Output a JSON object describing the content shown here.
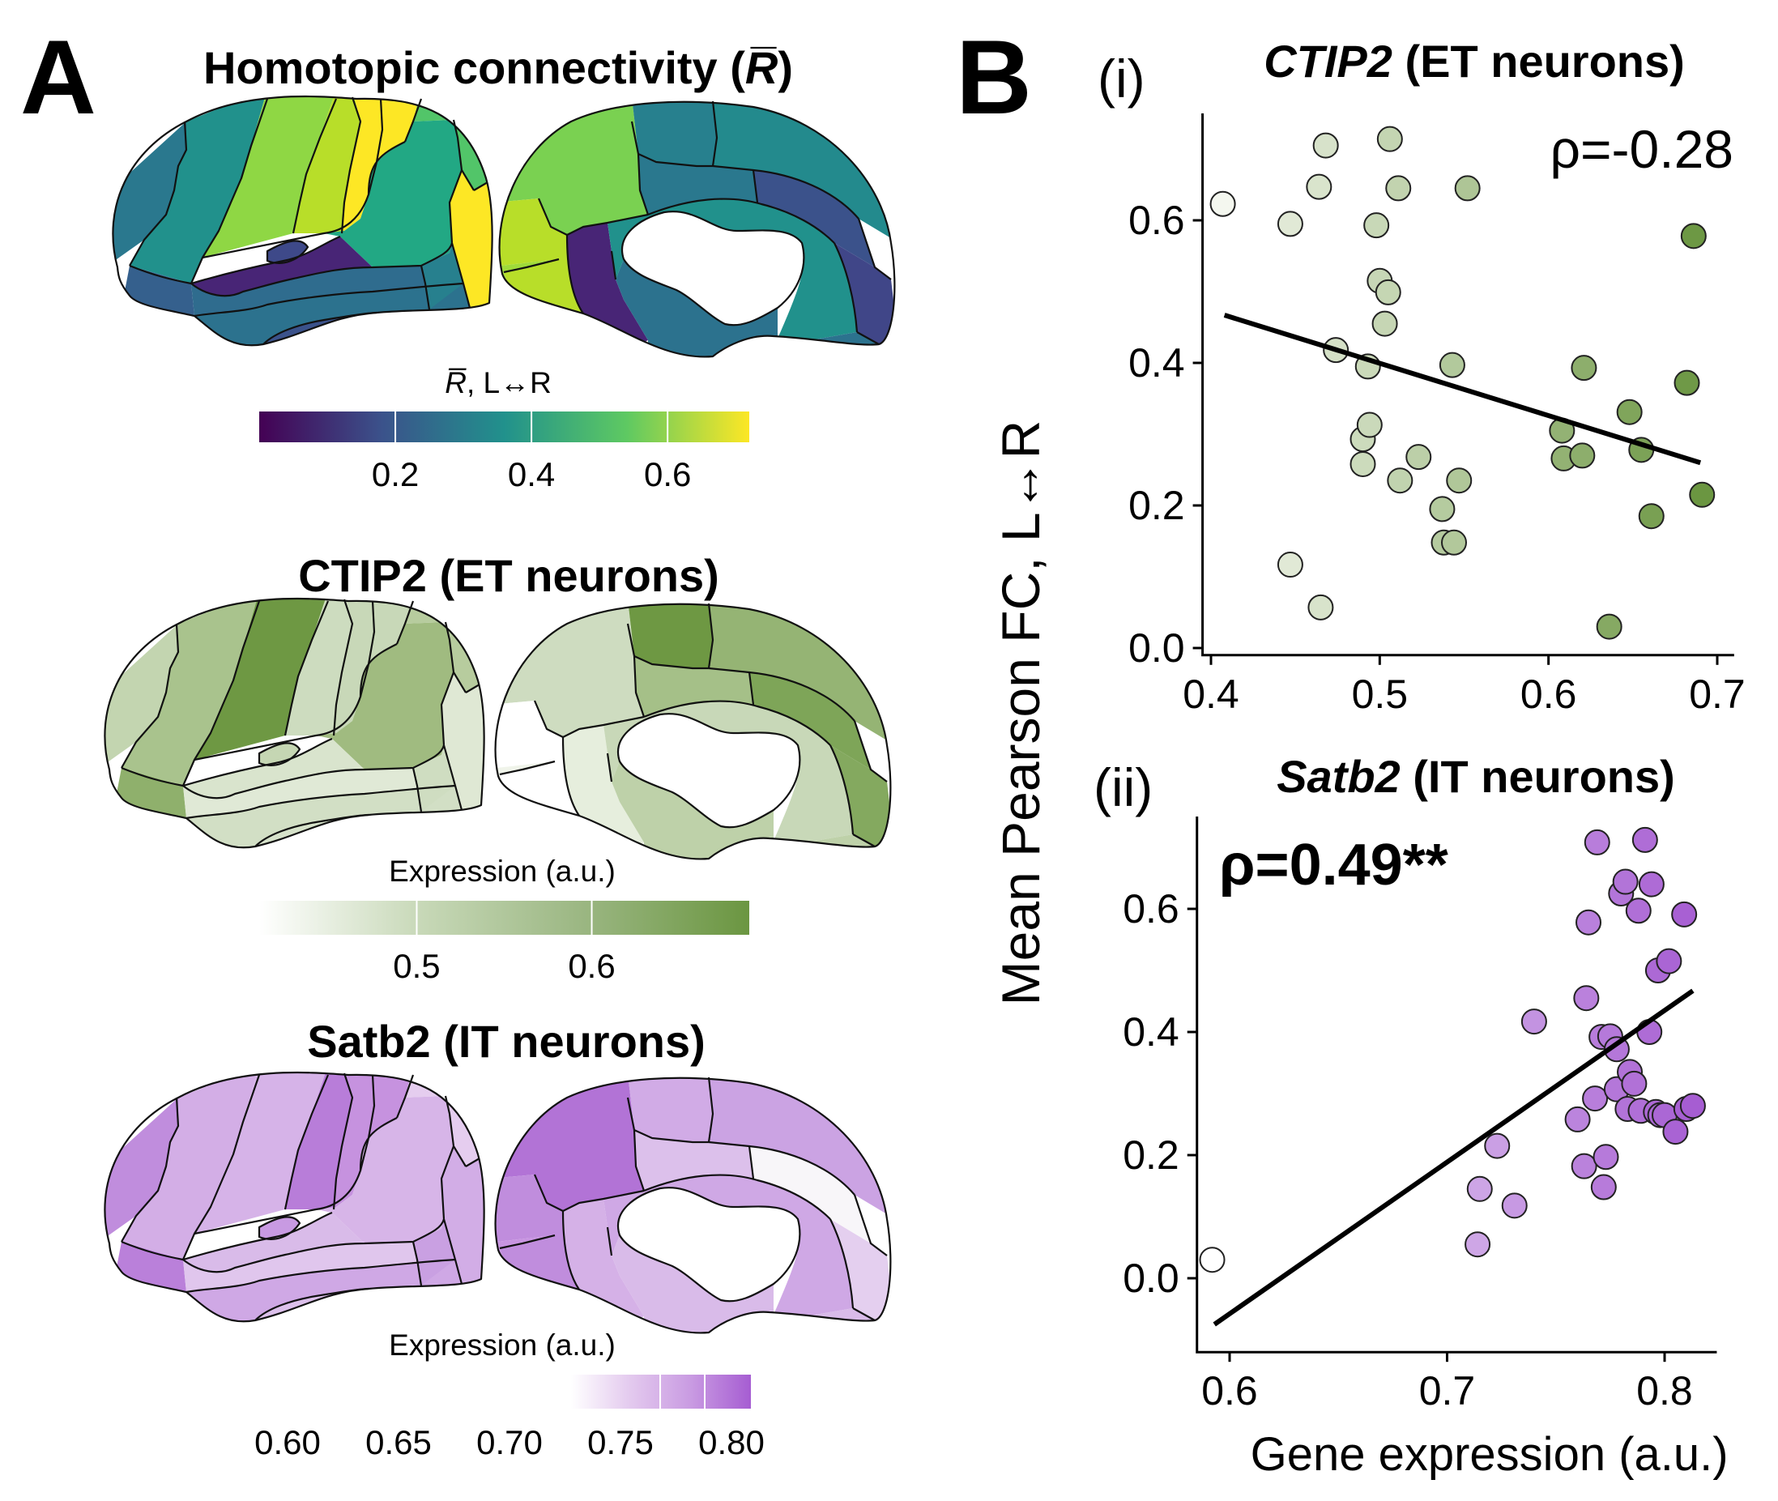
{
  "panel_a": {
    "letter": "A",
    "maps": [
      {
        "id": "homotopic",
        "title": "Homotopic connectivity (R̅)",
        "title_main": "Homotopic connectivity (",
        "title_symbol": "R̅",
        "title_close": ")",
        "colorbar_label_symbol": "R̅",
        "colorbar_label_rest": ", L↔R",
        "colormap": [
          "#440154",
          "#3b528b",
          "#21918c",
          "#5ec962",
          "#fde725"
        ],
        "colorbar_ticks": [
          "0.2",
          "0.4",
          "0.6"
        ],
        "colorbar_tick_values": [
          0.2,
          0.4,
          0.6
        ],
        "colorbar_range": [
          0.0,
          0.72
        ],
        "lateral_colors": [
          "#2a788e",
          "#21918c",
          "#35608d",
          "#8fd744",
          "#b8de29",
          "#fde725",
          "#52c569",
          "#22a884",
          "#3e4989",
          "#482576",
          "#2f6c8e",
          "#2c728e",
          "#fde725",
          "#27808e",
          "#3b528b"
        ],
        "medial_colors": [
          "#7ad151",
          "#27808e",
          "#238a8d",
          "#2a788e",
          "#3b528b",
          "#404688",
          "#b8de29",
          "#9fda3a",
          "#482576",
          "#21918c",
          "#2c728e"
        ]
      },
      {
        "id": "ctip2",
        "title": "CTIP2 (ET neurons)",
        "colorbar_label": "Expression (a.u.)",
        "colormap": [
          "#ffffff",
          "#c7d8b7",
          "#9ab681",
          "#6b9641"
        ],
        "colorbar_ticks": [
          "0.5",
          "0.6"
        ],
        "colorbar_tick_values": [
          0.5,
          0.6
        ],
        "colorbar_range": [
          0.41,
          0.69
        ],
        "lateral_colors": [
          "#c3d5b0",
          "#a9c38d",
          "#8fb06c",
          "#6e9843",
          "#cddcbf",
          "#c8d8b8",
          "#b7cc9e",
          "#a0bb80",
          "#c5d6b3",
          "#d9e4cd",
          "#e0e9d6",
          "#d2dfc5",
          "#dfe8d4",
          "#cfddc1",
          "#d6e2ca"
        ],
        "medial_colors": [
          "#cedcc0",
          "#6e9843",
          "#95b474",
          "#a5c088",
          "#7ea558",
          "#84a95f",
          "#ffffff",
          "#f0f4ea",
          "#e6eedd",
          "#c8d8b8",
          "#bed1a9"
        ]
      },
      {
        "id": "satb2",
        "title": "Satb2 (IT neurons)",
        "colorbar_label": "Expression (a.u.)",
        "colormap": [
          "#ffffff",
          "#e3c9ee",
          "#c99be2",
          "#a65dd2"
        ],
        "colorbar_ticks": [
          "0.60",
          "0.65",
          "0.70",
          "0.75",
          "0.80"
        ],
        "colorbar_tick_values": [
          0.6,
          0.65,
          0.7,
          0.75,
          0.8
        ],
        "colorbar_range": [
          0.6,
          0.81
        ],
        "lateral_colors": [
          "#c08ddd",
          "#d3aee6",
          "#ba80da",
          "#d6b3e8",
          "#b87dd9",
          "#c692df",
          "#e5cdef",
          "#d7b5e8",
          "#c89ae2",
          "#d9bbe9",
          "#e0c6ed",
          "#cfa8e5",
          "#d2ade6",
          "#c9a0e2",
          "#dcc0eb"
        ],
        "medial_colors": [
          "#b273d6",
          "#d1abe6",
          "#cba3e3",
          "#dcc0eb",
          "#f8f6f9",
          "#e4cfef",
          "#c08ddd",
          "#c895e1",
          "#d5b1e7",
          "#cfa8e5",
          "#d9bbe9"
        ]
      }
    ]
  },
  "panel_b": {
    "letter": "B",
    "shared_ylabel": "Mean Pearson FC, L↔R",
    "shared_xlabel": "Gene expression (a.u.)"
  },
  "chart_data": [
    {
      "type": "scatter",
      "panel": "(i)",
      "title": "CTIP2 (ET neurons)",
      "title_gene": "CTIP2",
      "title_rest": " (ET neurons)",
      "annotation": "ρ=-0.28",
      "annotation_bold": false,
      "xlabel": "",
      "ylabel": "Mean Pearson FC, L↔R",
      "xlim": [
        0.395,
        0.71
      ],
      "ylim": [
        -0.01,
        0.75
      ],
      "xticks": [
        0.4,
        0.5,
        0.6,
        0.7
      ],
      "xtick_labels": [
        "0.4",
        "0.5",
        "0.6",
        "0.7"
      ],
      "yticks": [
        0.0,
        0.2,
        0.4,
        0.6
      ],
      "ytick_labels": [
        "0.0",
        "0.2",
        "0.4",
        "0.6"
      ],
      "color_range": [
        "#f4f7ef",
        "#6b9641"
      ],
      "fit_line": {
        "x": [
          0.408,
          0.69
        ],
        "y": [
          0.467,
          0.26
        ]
      },
      "x": [
        0.407,
        0.447,
        0.447,
        0.464,
        0.465,
        0.468,
        0.474,
        0.49,
        0.49,
        0.493,
        0.494,
        0.498,
        0.5,
        0.503,
        0.505,
        0.506,
        0.511,
        0.512,
        0.523,
        0.537,
        0.538,
        0.543,
        0.544,
        0.547,
        0.552,
        0.608,
        0.609,
        0.62,
        0.621,
        0.648,
        0.655,
        0.661,
        0.682,
        0.686,
        0.691,
        0.636
      ],
      "y": [
        0.623,
        0.595,
        0.117,
        0.647,
        0.057,
        0.705,
        0.418,
        0.293,
        0.258,
        0.395,
        0.313,
        0.593,
        0.515,
        0.455,
        0.499,
        0.714,
        0.645,
        0.235,
        0.268,
        0.195,
        0.148,
        0.397,
        0.148,
        0.235,
        0.645,
        0.305,
        0.266,
        0.27,
        0.393,
        0.331,
        0.278,
        0.185,
        0.372,
        0.578,
        0.215,
        0.03
      ]
    },
    {
      "type": "scatter",
      "panel": "(ii)",
      "title": "Satb2 (IT neurons)",
      "title_gene": "Satb2",
      "title_rest": " (IT neurons)",
      "annotation": "ρ=0.49**",
      "annotation_bold": true,
      "xlabel": "Gene expression (a.u.)",
      "ylabel": "Mean Pearson FC, L↔R",
      "xlim": [
        0.585,
        0.824
      ],
      "ylim": [
        -0.12,
        0.75
      ],
      "xticks": [
        0.6,
        0.7,
        0.8
      ],
      "xtick_labels": [
        "0.6",
        "0.7",
        "0.8"
      ],
      "yticks": [
        0.0,
        0.2,
        0.4,
        0.6
      ],
      "ytick_labels": [
        "0.0",
        "0.2",
        "0.4",
        "0.6"
      ],
      "color_range": [
        "#ffffff",
        "#a65dd2"
      ],
      "fit_line": {
        "x": [
          0.593,
          0.813
        ],
        "y": [
          -0.075,
          0.467
        ]
      },
      "x": [
        0.592,
        0.714,
        0.715,
        0.723,
        0.731,
        0.74,
        0.76,
        0.763,
        0.764,
        0.765,
        0.768,
        0.769,
        0.771,
        0.772,
        0.773,
        0.775,
        0.778,
        0.778,
        0.78,
        0.782,
        0.783,
        0.784,
        0.786,
        0.788,
        0.789,
        0.791,
        0.793,
        0.794,
        0.796,
        0.797,
        0.798,
        0.8,
        0.802,
        0.805,
        0.809,
        0.81,
        0.813
      ],
      "y": [
        0.03,
        0.055,
        0.145,
        0.215,
        0.118,
        0.417,
        0.258,
        0.182,
        0.455,
        0.578,
        0.292,
        0.708,
        0.392,
        0.148,
        0.197,
        0.393,
        0.372,
        0.307,
        0.625,
        0.644,
        0.275,
        0.335,
        0.316,
        0.597,
        0.272,
        0.712,
        0.4,
        0.64,
        0.27,
        0.5,
        0.265,
        0.265,
        0.515,
        0.238,
        0.591,
        0.275,
        0.28
      ]
    }
  ]
}
